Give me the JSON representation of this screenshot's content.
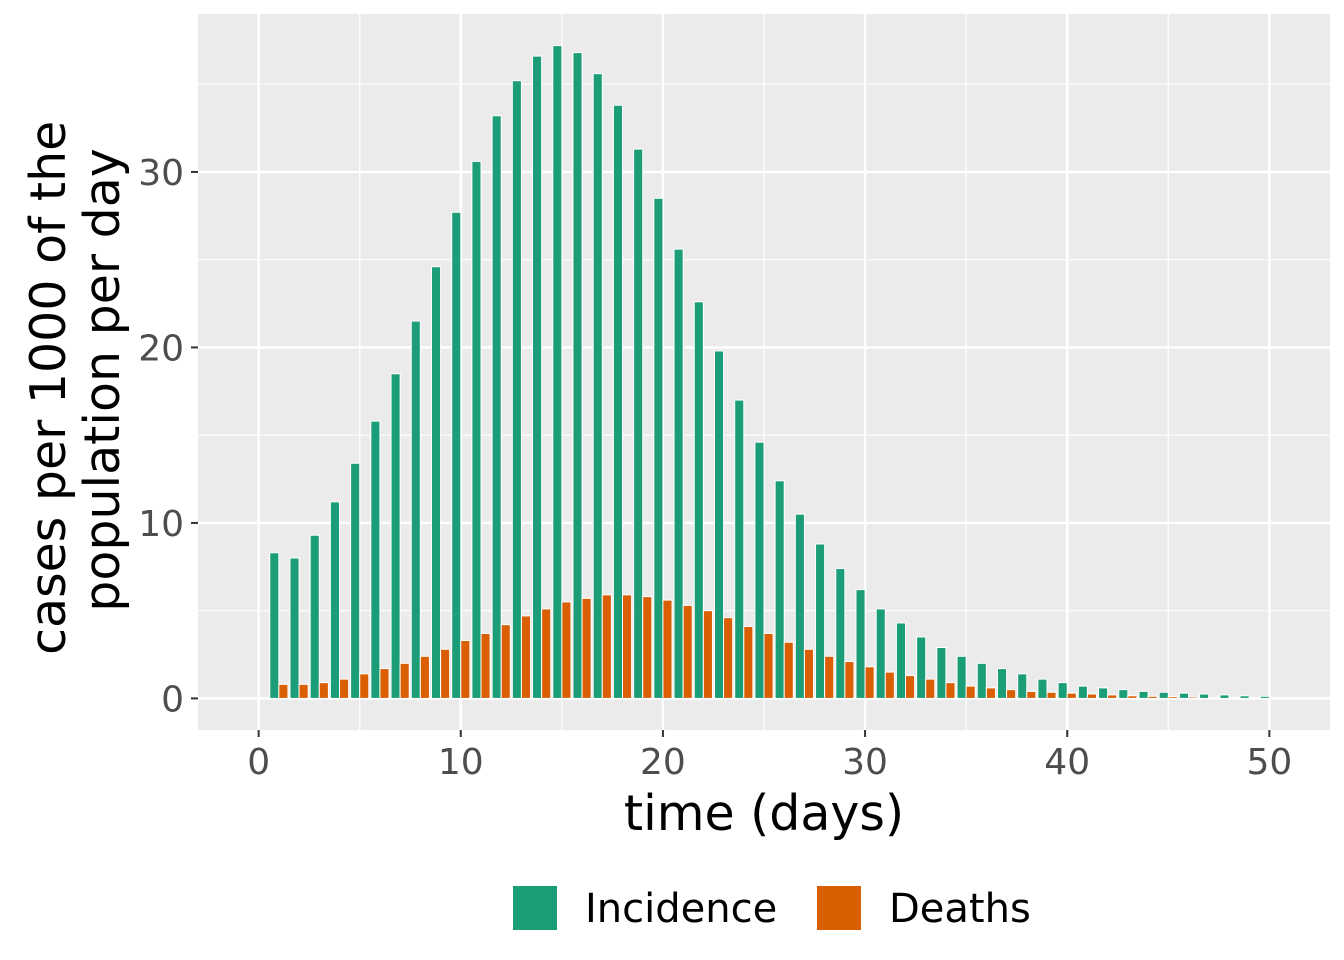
{
  "chart_data": {
    "type": "bar",
    "title": "",
    "xlabel": "time (days)",
    "ylabel": [
      "cases per 1000 of the",
      "population per day"
    ],
    "xlim": [
      -3,
      53
    ],
    "ylim": [
      -1.8,
      39
    ],
    "x_ticks": [
      0,
      10,
      20,
      30,
      40,
      50
    ],
    "y_ticks": [
      0,
      10,
      20,
      30
    ],
    "grid": true,
    "legend_position": "bottom",
    "panel_background": "#EBEBEB",
    "grid_color": "#FFFFFF",
    "x": [
      1,
      2,
      3,
      4,
      5,
      6,
      7,
      8,
      9,
      10,
      11,
      12,
      13,
      14,
      15,
      16,
      17,
      18,
      19,
      20,
      21,
      22,
      23,
      24,
      25,
      26,
      27,
      28,
      29,
      30,
      31,
      32,
      33,
      34,
      35,
      36,
      37,
      38,
      39,
      40,
      41,
      42,
      43,
      44,
      45,
      46,
      47,
      48,
      49,
      50
    ],
    "series": [
      {
        "name": "Incidence",
        "color": "#1B9E77",
        "values": [
          8.3,
          8.0,
          9.3,
          11.2,
          13.4,
          15.8,
          18.5,
          21.5,
          24.6,
          27.7,
          30.6,
          33.2,
          35.2,
          36.6,
          37.2,
          36.8,
          35.6,
          33.8,
          31.3,
          28.5,
          25.6,
          22.6,
          19.8,
          17.0,
          14.6,
          12.4,
          10.5,
          8.8,
          7.4,
          6.2,
          5.1,
          4.3,
          3.5,
          2.9,
          2.4,
          2.0,
          1.7,
          1.4,
          1.1,
          0.9,
          0.7,
          0.6,
          0.5,
          0.4,
          0.35,
          0.3,
          0.25,
          0.2,
          0.15,
          0.12
        ]
      },
      {
        "name": "Deaths",
        "color": "#D95F02",
        "values": [
          0.8,
          0.8,
          0.9,
          1.1,
          1.4,
          1.7,
          2.0,
          2.4,
          2.8,
          3.3,
          3.7,
          4.2,
          4.7,
          5.1,
          5.5,
          5.7,
          5.9,
          5.9,
          5.8,
          5.6,
          5.3,
          5.0,
          4.6,
          4.1,
          3.7,
          3.2,
          2.8,
          2.4,
          2.1,
          1.8,
          1.5,
          1.3,
          1.1,
          0.9,
          0.7,
          0.6,
          0.5,
          0.4,
          0.35,
          0.3,
          0.25,
          0.2,
          0.15,
          0.12,
          0.1,
          0.08,
          0.06,
          0.05,
          0.04,
          0.03
        ]
      }
    ]
  }
}
